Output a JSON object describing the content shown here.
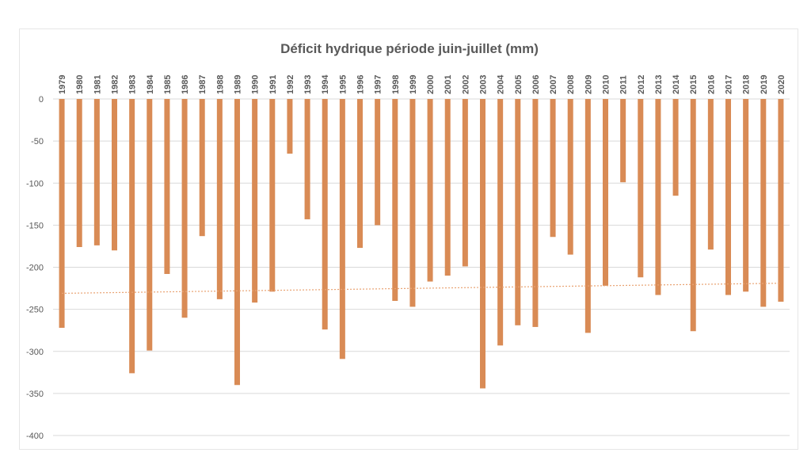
{
  "chart_data": {
    "type": "bar",
    "title": "Déficit hydrique période juin-juillet (mm)",
    "xlabel": "",
    "ylabel": "",
    "ylim": [
      -400,
      0
    ],
    "yticks": [
      0,
      -50,
      -100,
      -150,
      -200,
      -250,
      -300,
      -350,
      -400
    ],
    "categories": [
      "1979",
      "1980",
      "1981",
      "1982",
      "1983",
      "1984",
      "1985",
      "1986",
      "1987",
      "1988",
      "1989",
      "1990",
      "1991",
      "1992",
      "1993",
      "1994",
      "1995",
      "1996",
      "1997",
      "1998",
      "1999",
      "2000",
      "2001",
      "2002",
      "2003",
      "2004",
      "2005",
      "2006",
      "2007",
      "2008",
      "2009",
      "2010",
      "2011",
      "2012",
      "2013",
      "2014",
      "2015",
      "2016",
      "2017",
      "2018",
      "2019",
      "2020"
    ],
    "values": [
      -272,
      -176,
      -174,
      -180,
      -326,
      -299,
      -208,
      -260,
      -163,
      -238,
      -340,
      -242,
      -229,
      -65,
      -143,
      -274,
      -309,
      -177,
      -150,
      -240,
      -247,
      -217,
      -210,
      -199,
      -344,
      -293,
      -269,
      -271,
      -164,
      -185,
      -278,
      -222,
      -99,
      -212,
      -233,
      -115,
      -276,
      -179,
      -233,
      -229,
      -247,
      -241
    ],
    "trendline": {
      "style": "dotted",
      "start": -231,
      "end": -219
    },
    "grid": true,
    "legend": "none",
    "colors": {
      "bar": "#D98B55",
      "trend": "#E9A373",
      "grid": "#d9d9d9",
      "text": "#595959"
    }
  }
}
